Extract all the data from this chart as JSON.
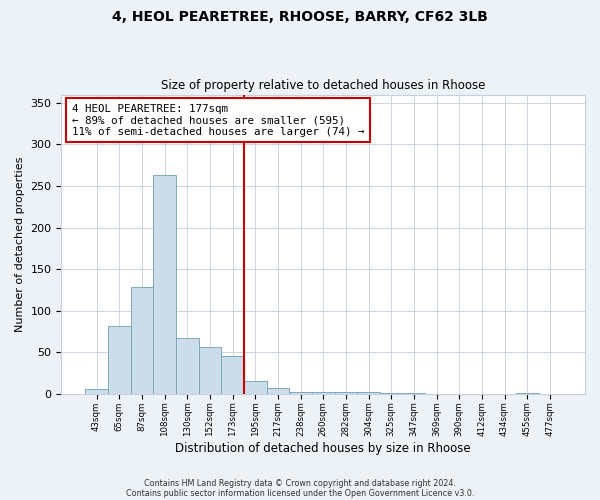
{
  "title": "4, HEOL PEARETREE, RHOOSE, BARRY, CF62 3LB",
  "subtitle": "Size of property relative to detached houses in Rhoose",
  "xlabel": "Distribution of detached houses by size in Rhoose",
  "ylabel": "Number of detached properties",
  "bar_labels": [
    "43sqm",
    "65sqm",
    "87sqm",
    "108sqm",
    "130sqm",
    "152sqm",
    "173sqm",
    "195sqm",
    "217sqm",
    "238sqm",
    "260sqm",
    "282sqm",
    "304sqm",
    "325sqm",
    "347sqm",
    "369sqm",
    "390sqm",
    "412sqm",
    "434sqm",
    "455sqm",
    "477sqm"
  ],
  "bar_heights": [
    6,
    82,
    128,
    263,
    67,
    57,
    46,
    15,
    7,
    2,
    2,
    2,
    2,
    1,
    1,
    0,
    0,
    0,
    0,
    1,
    0
  ],
  "bar_color": "#ccdcea",
  "bar_edge_color": "#7aaabb",
  "vline_x_index": 6,
  "vline_color": "#cc0000",
  "annotation_text": "4 HEOL PEARETREE: 177sqm\n← 89% of detached houses are smaller (595)\n11% of semi-detached houses are larger (74) →",
  "annotation_box_color": "#cc0000",
  "ylim": [
    0,
    360
  ],
  "yticks": [
    0,
    50,
    100,
    150,
    200,
    250,
    300,
    350
  ],
  "footer_line1": "Contains HM Land Registry data © Crown copyright and database right 2024.",
  "footer_line2": "Contains public sector information licensed under the Open Government Licence v3.0.",
  "bg_color": "#edf2f7",
  "plot_bg_color": "#ffffff",
  "grid_color": "#c5d0dc"
}
